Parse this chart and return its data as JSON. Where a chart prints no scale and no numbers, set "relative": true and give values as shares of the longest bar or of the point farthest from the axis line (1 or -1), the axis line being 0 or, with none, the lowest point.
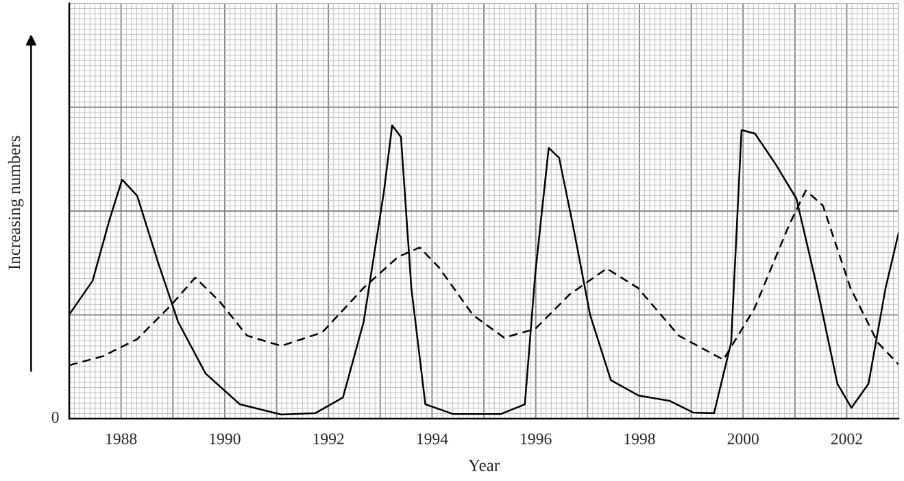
{
  "chart_data": {
    "type": "line",
    "relative": true,
    "xlabel": "Year",
    "ylabel": "Increasing numbers",
    "xlim": [
      1987,
      2003
    ],
    "xticks": [
      {
        "value": 1987,
        "label": null
      },
      1988,
      {
        "value": 1989,
        "label": null
      },
      1990,
      {
        "value": 1991,
        "label": null
      },
      1992,
      {
        "value": 1993,
        "label": null
      },
      1994,
      {
        "value": 1995,
        "label": null
      },
      1996,
      {
        "value": 1997,
        "label": null
      },
      1998,
      {
        "value": 1999,
        "label": null
      },
      2000,
      {
        "value": 2001,
        "label": null
      },
      2002,
      {
        "value": 2003,
        "label": null
      }
    ],
    "grid": true,
    "annotations": [
      "0"
    ],
    "series": [
      {
        "color": "#000000",
        "line_style": "solid",
        "x": [
          1987.0,
          1987.45,
          1987.78,
          1988.02,
          1988.31,
          1988.7,
          1989.1,
          1989.63,
          1990.29,
          1991.09,
          1991.75,
          1992.28,
          1992.68,
          1993.07,
          1993.23,
          1993.4,
          1993.6,
          1993.87,
          1994.4,
          1995.33,
          1995.79,
          1995.99,
          1996.25,
          1996.45,
          1996.72,
          1997.05,
          1997.45,
          1997.98,
          1998.58,
          1999.04,
          1999.44,
          1999.77,
          1999.97,
          2000.23,
          2000.63,
          2001.03,
          2001.43,
          2001.82,
          2002.09,
          2002.42,
          2002.75,
          2003.0
        ],
        "values": [
          0.355,
          0.47,
          0.68,
          0.815,
          0.76,
          0.54,
          0.33,
          0.154,
          0.049,
          0.014,
          0.019,
          0.072,
          0.33,
          0.773,
          1.0,
          0.96,
          0.446,
          0.049,
          0.016,
          0.016,
          0.049,
          0.493,
          0.923,
          0.89,
          0.657,
          0.353,
          0.131,
          0.079,
          0.061,
          0.021,
          0.019,
          0.26,
          0.984,
          0.972,
          0.867,
          0.75,
          0.446,
          0.119,
          0.037,
          0.119,
          0.446,
          0.633
        ]
      },
      {
        "color": "#000000",
        "line_style": "dashed",
        "x": [
          1987.0,
          1987.65,
          1988.31,
          1988.97,
          1989.43,
          1989.9,
          1990.43,
          1991.09,
          1991.88,
          1992.68,
          1993.34,
          1993.76,
          1994.13,
          1994.79,
          1995.39,
          1995.99,
          1996.65,
          1997.37,
          1997.97,
          1998.76,
          1999.62,
          2000.22,
          2000.88,
          2001.21,
          2001.54,
          2002.07,
          2002.6,
          2003.0
        ],
        "values": [
          0.182,
          0.213,
          0.271,
          0.388,
          0.481,
          0.4,
          0.283,
          0.248,
          0.294,
          0.446,
          0.551,
          0.584,
          0.516,
          0.353,
          0.276,
          0.306,
          0.423,
          0.512,
          0.446,
          0.283,
          0.201,
          0.376,
          0.657,
          0.778,
          0.727,
          0.446,
          0.259,
          0.185
        ]
      }
    ]
  }
}
